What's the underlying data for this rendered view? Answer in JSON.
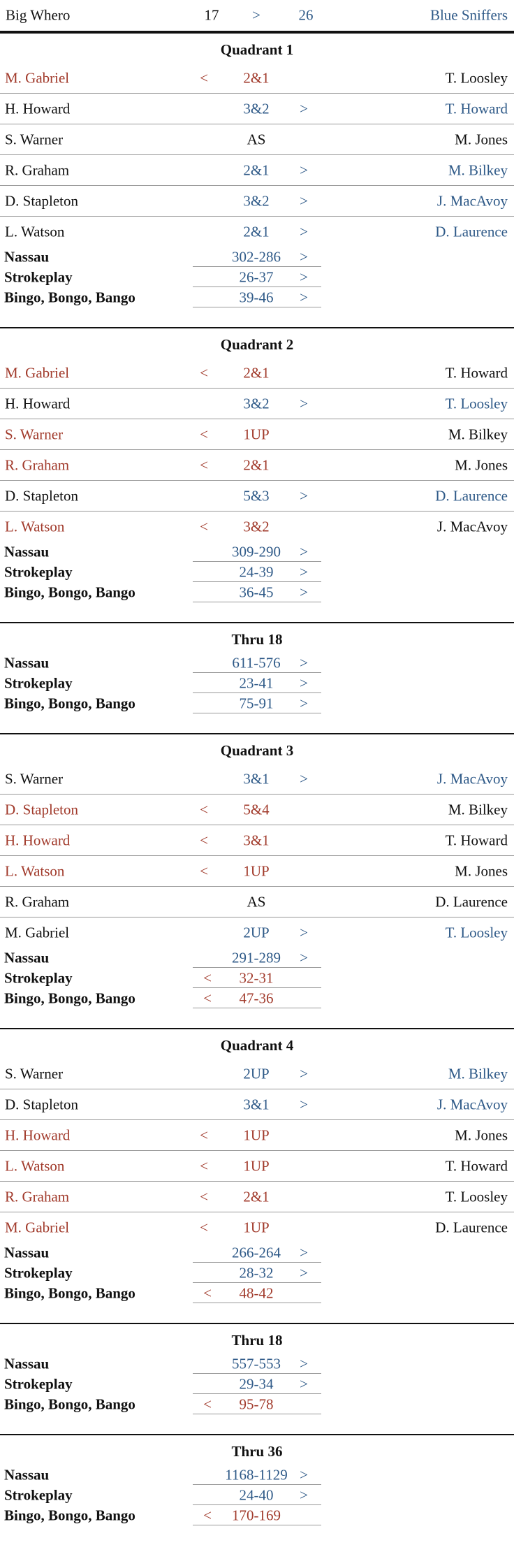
{
  "header": {
    "left": "Big Whero",
    "left_score": "17",
    "arrow": ">",
    "right_score": "26",
    "right": "Blue Sniffers"
  },
  "colors": {
    "left": "#a13a2b",
    "right": "#2f5a88",
    "neutral": "#111111"
  },
  "sections": [
    {
      "title": "Quadrant 1",
      "matches": [
        {
          "left": "M. Gabriel",
          "arrow": "<",
          "result": "2&1",
          "right": "T. Loosley"
        },
        {
          "left": "H. Howard",
          "arrow": ">",
          "result": "3&2",
          "right": "T. Howard"
        },
        {
          "left": "S. Warner",
          "arrow": null,
          "result": "AS",
          "right": "M. Jones"
        },
        {
          "left": "R. Graham",
          "arrow": ">",
          "result": "2&1",
          "right": "M. Bilkey"
        },
        {
          "left": "D. Stapleton",
          "arrow": ">",
          "result": "3&2",
          "right": "J. MacAvoy"
        },
        {
          "left": "L. Watson",
          "arrow": ">",
          "result": "2&1",
          "right": "D. Laurence"
        }
      ],
      "totals": [
        {
          "label": "Nassau",
          "arrow": ">",
          "score": "302-286"
        },
        {
          "label": "Strokeplay",
          "arrow": ">",
          "score": "26-37"
        },
        {
          "label": "Bingo, Bongo, Bango",
          "arrow": ">",
          "score": "39-46"
        }
      ]
    },
    {
      "title": "Quadrant 2",
      "matches": [
        {
          "left": "M. Gabriel",
          "arrow": "<",
          "result": "2&1",
          "right": "T. Howard"
        },
        {
          "left": "H. Howard",
          "arrow": ">",
          "result": "3&2",
          "right": "T. Loosley"
        },
        {
          "left": "S. Warner",
          "arrow": "<",
          "result": "1UP",
          "right": "M. Bilkey"
        },
        {
          "left": "R. Graham",
          "arrow": "<",
          "result": "2&1",
          "right": "M. Jones"
        },
        {
          "left": "D. Stapleton",
          "arrow": ">",
          "result": "5&3",
          "right": "D. Laurence"
        },
        {
          "left": "L. Watson",
          "arrow": "<",
          "result": "3&2",
          "right": "J. MacAvoy"
        }
      ],
      "totals": [
        {
          "label": "Nassau",
          "arrow": ">",
          "score": "309-290"
        },
        {
          "label": "Strokeplay",
          "arrow": ">",
          "score": "24-39"
        },
        {
          "label": "Bingo, Bongo, Bango",
          "arrow": ">",
          "score": "36-45"
        }
      ]
    },
    {
      "title": "Thru 18",
      "matches": [],
      "totals": [
        {
          "label": "Nassau",
          "arrow": ">",
          "score": "611-576"
        },
        {
          "label": "Strokeplay",
          "arrow": ">",
          "score": "23-41"
        },
        {
          "label": "Bingo, Bongo, Bango",
          "arrow": ">",
          "score": "75-91"
        }
      ]
    },
    {
      "title": "Quadrant 3",
      "matches": [
        {
          "left": "S. Warner",
          "arrow": ">",
          "result": "3&1",
          "right": "J. MacAvoy"
        },
        {
          "left": "D. Stapleton",
          "arrow": "<",
          "result": "5&4",
          "right": "M. Bilkey"
        },
        {
          "left": "H. Howard",
          "arrow": "<",
          "result": "3&1",
          "right": "T. Howard"
        },
        {
          "left": "L. Watson",
          "arrow": "<",
          "result": "1UP",
          "right": "M. Jones"
        },
        {
          "left": "R. Graham",
          "arrow": null,
          "result": "AS",
          "right": "D. Laurence"
        },
        {
          "left": "M. Gabriel",
          "arrow": ">",
          "result": "2UP",
          "right": "T. Loosley"
        }
      ],
      "totals": [
        {
          "label": "Nassau",
          "arrow": ">",
          "score": "291-289"
        },
        {
          "label": "Strokeplay",
          "arrow": "<",
          "score": "32-31"
        },
        {
          "label": "Bingo, Bongo, Bango",
          "arrow": "<",
          "score": "47-36"
        }
      ]
    },
    {
      "title": "Quadrant 4",
      "matches": [
        {
          "left": "S. Warner",
          "arrow": ">",
          "result": "2UP",
          "right": "M. Bilkey"
        },
        {
          "left": "D. Stapleton",
          "arrow": ">",
          "result": "3&1",
          "right": "J. MacAvoy"
        },
        {
          "left": "H. Howard",
          "arrow": "<",
          "result": "1UP",
          "right": "M. Jones"
        },
        {
          "left": "L. Watson",
          "arrow": "<",
          "result": "1UP",
          "right": "T. Howard"
        },
        {
          "left": "R. Graham",
          "arrow": "<",
          "result": "2&1",
          "right": "T. Loosley"
        },
        {
          "left": "M. Gabriel",
          "arrow": "<",
          "result": "1UP",
          "right": "D. Laurence"
        }
      ],
      "totals": [
        {
          "label": "Nassau",
          "arrow": ">",
          "score": "266-264"
        },
        {
          "label": "Strokeplay",
          "arrow": ">",
          "score": "28-32"
        },
        {
          "label": "Bingo, Bongo, Bango",
          "arrow": "<",
          "score": "48-42"
        }
      ]
    },
    {
      "title": "Thru 18",
      "matches": [],
      "totals": [
        {
          "label": "Nassau",
          "arrow": ">",
          "score": "557-553"
        },
        {
          "label": "Strokeplay",
          "arrow": ">",
          "score": "29-34"
        },
        {
          "label": "Bingo, Bongo, Bango",
          "arrow": "<",
          "score": "95-78"
        }
      ]
    },
    {
      "title": "Thru 36",
      "matches": [],
      "totals": [
        {
          "label": "Nassau",
          "arrow": ">",
          "score": "1168-1129"
        },
        {
          "label": "Strokeplay",
          "arrow": ">",
          "score": "24-40"
        },
        {
          "label": "Bingo, Bongo, Bango",
          "arrow": "<",
          "score": "170-169"
        }
      ]
    }
  ]
}
